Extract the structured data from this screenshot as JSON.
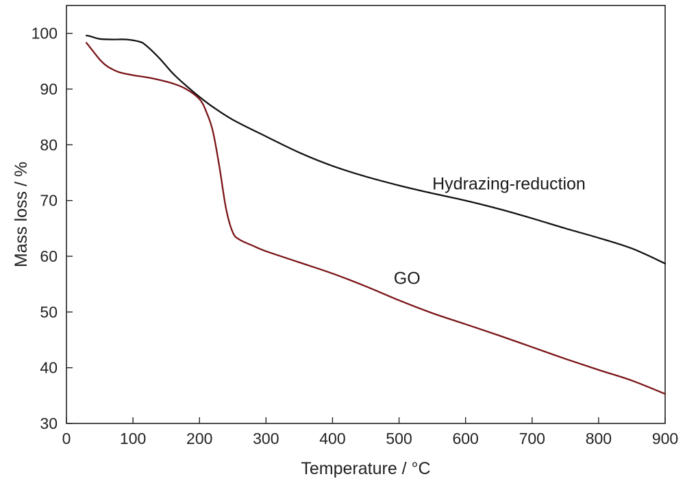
{
  "chart_data": {
    "type": "line",
    "title": "",
    "xlabel": "Temperature / °C",
    "ylabel": "Mass loss / %",
    "xlim": [
      0,
      900
    ],
    "ylim": [
      30,
      105
    ],
    "xticks": [
      0,
      100,
      200,
      300,
      400,
      500,
      600,
      700,
      800,
      900
    ],
    "yticks": [
      30,
      40,
      50,
      60,
      70,
      80,
      90,
      100
    ],
    "grid": false,
    "legend": "none",
    "series": [
      {
        "name": "Hydrazing-reduction",
        "color": "#111111",
        "x": [
          30,
          35,
          50,
          70,
          90,
          110,
          120,
          140,
          160,
          180,
          200,
          220,
          250,
          300,
          350,
          400,
          450,
          500,
          550,
          600,
          650,
          700,
          750,
          800,
          850,
          900
        ],
        "y": [
          99.6,
          99.5,
          99.0,
          98.9,
          98.9,
          98.5,
          97.8,
          95.5,
          92.8,
          90.6,
          88.6,
          86.8,
          84.5,
          81.5,
          78.6,
          76.2,
          74.3,
          72.7,
          71.3,
          70.0,
          68.5,
          66.8,
          65.0,
          63.3,
          61.4,
          58.7
        ]
      },
      {
        "name": "GO",
        "color": "#7a1418",
        "x": [
          30,
          40,
          50,
          60,
          70,
          80,
          100,
          130,
          160,
          180,
          200,
          210,
          220,
          230,
          240,
          250,
          260,
          280,
          300,
          350,
          400,
          450,
          500,
          550,
          600,
          650,
          700,
          750,
          800,
          850,
          900
        ],
        "y": [
          98.3,
          96.8,
          95.3,
          94.2,
          93.5,
          93.0,
          92.5,
          91.9,
          91.0,
          90.0,
          88.2,
          86.0,
          82.5,
          76.0,
          68.5,
          64.3,
          63.0,
          61.9,
          60.9,
          58.9,
          56.9,
          54.6,
          52.1,
          49.8,
          47.8,
          45.8,
          43.7,
          41.6,
          39.6,
          37.7,
          35.3
        ]
      }
    ],
    "annotations": [
      {
        "text": "Hydrazing-reduction",
        "x": 550,
        "y": 72
      },
      {
        "text": "GO",
        "x": 492,
        "y": 55
      }
    ]
  }
}
